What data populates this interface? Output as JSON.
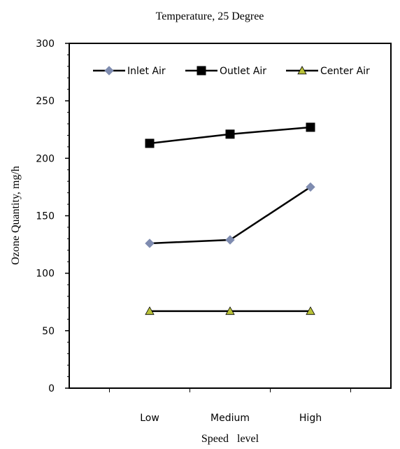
{
  "chart_data": {
    "type": "line",
    "title": "Temperature, 25 Degree",
    "xlabel": "Speed   level",
    "ylabel": "Ozone Quantity, mg/h",
    "categories": [
      "Low",
      "Medium",
      "High"
    ],
    "ylim": [
      0,
      300
    ],
    "yticks": [
      "0",
      "50",
      "100",
      "150",
      "200",
      "250",
      "300"
    ],
    "legend_position": "top",
    "grid": false,
    "series": [
      {
        "name": "Inlet Air",
        "values": [
          126,
          129,
          175
        ],
        "marker": "diamond",
        "color": "#7f8cb0"
      },
      {
        "name": "Outlet Air",
        "values": [
          213,
          221,
          227
        ],
        "marker": "square",
        "color": "#000000"
      },
      {
        "name": "Center Air",
        "values": [
          67,
          67,
          67
        ],
        "marker": "triangle",
        "color": "#b9c239"
      }
    ]
  }
}
